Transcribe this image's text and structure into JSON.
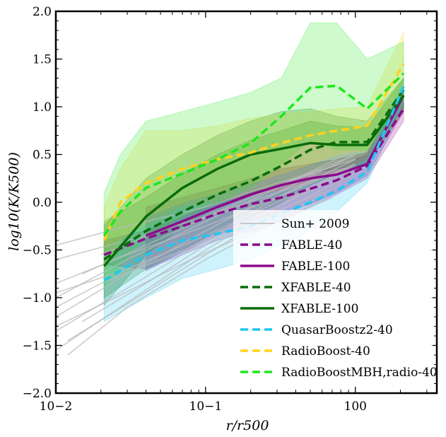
{
  "chart_data": {
    "type": "line",
    "title": "",
    "xlabel": "r/r500",
    "ylabel": "log10(K/K500)",
    "xscale": "log",
    "xlim": [
      0.01,
      3.5
    ],
    "ylim": [
      -2.0,
      2.0
    ],
    "x_ticks": [
      {
        "value": 0.01,
        "label": "10−2"
      },
      {
        "value": 0.1,
        "label": "10−1"
      },
      {
        "value": 1,
        "label": "100"
      }
    ],
    "y_ticks": [
      {
        "value": -2.0,
        "label": "−2.0"
      },
      {
        "value": -1.5,
        "label": "−1.5"
      },
      {
        "value": -1.0,
        "label": "−1.0"
      },
      {
        "value": -0.5,
        "label": "−0.5"
      },
      {
        "value": 0.0,
        "label": "0.0"
      },
      {
        "value": 0.5,
        "label": "0.5"
      },
      {
        "value": 1.0,
        "label": "1.0"
      },
      {
        "value": 1.5,
        "label": "1.5"
      },
      {
        "value": 2.0,
        "label": "2.0"
      }
    ],
    "legend_position": "lower-right",
    "background_profiles": {
      "name": "Sun+ 2009",
      "color": "#bbbbbb",
      "profiles": [
        {
          "x": [
            0.01,
            0.03,
            0.1,
            0.3,
            1.0
          ],
          "y": [
            -1.55,
            -1.05,
            -0.5,
            -0.05,
            0.4
          ]
        },
        {
          "x": [
            0.01,
            0.03,
            0.1,
            0.3,
            1.0
          ],
          "y": [
            -1.35,
            -0.9,
            -0.4,
            0.05,
            0.45
          ]
        },
        {
          "x": [
            0.01,
            0.03,
            0.1,
            0.3,
            1.0
          ],
          "y": [
            -1.2,
            -0.75,
            -0.3,
            0.1,
            0.5
          ]
        },
        {
          "x": [
            0.01,
            0.03,
            0.1,
            0.3,
            1.0
          ],
          "y": [
            -1.0,
            -0.6,
            -0.2,
            0.15,
            0.55
          ]
        },
        {
          "x": [
            0.01,
            0.03,
            0.1,
            0.3,
            1.0
          ],
          "y": [
            -0.85,
            -0.55,
            -0.25,
            0.05,
            0.4
          ]
        },
        {
          "x": [
            0.01,
            0.03,
            0.1,
            0.3,
            0.9
          ],
          "y": [
            -0.6,
            -0.4,
            -0.15,
            0.1,
            0.35
          ]
        },
        {
          "x": [
            0.01,
            0.03,
            0.1,
            0.3,
            0.8
          ],
          "y": [
            -0.45,
            -0.25,
            -0.05,
            0.2,
            0.4
          ]
        },
        {
          "x": [
            0.012,
            0.03,
            0.1,
            0.3,
            0.8
          ],
          "y": [
            -1.6,
            -1.1,
            -0.6,
            -0.2,
            0.2
          ]
        },
        {
          "x": [
            0.012,
            0.035,
            0.1,
            0.3,
            1.0
          ],
          "y": [
            -1.45,
            -1.0,
            -0.55,
            -0.1,
            0.3
          ]
        },
        {
          "x": [
            0.015,
            0.04,
            0.1,
            0.3,
            1.0
          ],
          "y": [
            -1.25,
            -0.85,
            -0.45,
            -0.05,
            0.35
          ]
        },
        {
          "x": [
            0.01,
            0.03,
            0.1,
            0.3,
            0.7
          ],
          "y": [
            -0.95,
            -0.7,
            -0.35,
            0.0,
            0.25
          ]
        },
        {
          "x": [
            0.01,
            0.02,
            0.06,
            0.2,
            0.6
          ],
          "y": [
            -1.1,
            -0.85,
            -0.55,
            -0.2,
            0.1
          ]
        },
        {
          "x": [
            0.015,
            0.04,
            0.12,
            0.4,
            1.0
          ],
          "y": [
            -0.75,
            -0.45,
            -0.1,
            0.25,
            0.5
          ]
        },
        {
          "x": [
            0.02,
            0.05,
            0.15,
            0.4,
            1.0
          ],
          "y": [
            -0.55,
            -0.3,
            0.0,
            0.25,
            0.45
          ]
        },
        {
          "x": [
            0.01,
            0.025,
            0.08,
            0.25,
            0.7
          ],
          "y": [
            -1.3,
            -1.0,
            -0.6,
            -0.25,
            0.05
          ]
        }
      ]
    },
    "series": [
      {
        "name": "FABLE-40",
        "color": "#8b0a8b",
        "dash": "dashed",
        "x": [
          0.021,
          0.04,
          0.07,
          0.12,
          0.2,
          0.32,
          0.5,
          0.75,
          1.2,
          2.1
        ],
        "y": [
          -0.55,
          -0.38,
          -0.25,
          -0.12,
          -0.02,
          0.05,
          0.14,
          0.23,
          0.38,
          0.98
        ],
        "band_low": [
          -0.65,
          -0.7,
          -0.55,
          -0.4,
          -0.3,
          -0.2,
          -0.05,
          0.08,
          0.25,
          0.85
        ],
        "band_high": [
          -0.4,
          -0.3,
          -0.15,
          0.0,
          0.1,
          0.18,
          0.28,
          0.38,
          0.5,
          1.15
        ]
      },
      {
        "name": "FABLE-100",
        "color": "#8b0a8b",
        "dash": "solid",
        "x": [
          0.04,
          0.07,
          0.12,
          0.2,
          0.32,
          0.5,
          0.75,
          1.2,
          2.1
        ],
        "y": [
          -0.35,
          -0.2,
          -0.05,
          0.08,
          0.18,
          0.25,
          0.29,
          0.4,
          1.12
        ],
        "band_low": [
          -0.72,
          -0.52,
          -0.35,
          -0.2,
          -0.1,
          -0.02,
          0.1,
          0.28,
          0.95
        ],
        "band_high": [
          -0.05,
          0.05,
          0.15,
          0.25,
          0.35,
          0.4,
          0.45,
          0.52,
          1.22
        ]
      },
      {
        "name": "XFABLE-40",
        "color": "#0a6b0a",
        "dash": "dashed",
        "x": [
          0.021,
          0.04,
          0.07,
          0.12,
          0.2,
          0.32,
          0.5,
          0.75,
          1.2,
          2.1
        ],
        "y": [
          -0.6,
          -0.3,
          -0.1,
          0.08,
          0.22,
          0.38,
          0.55,
          0.63,
          0.63,
          1.18
        ],
        "band_low": [
          -1.0,
          -0.7,
          -0.5,
          -0.3,
          -0.15,
          0.0,
          0.18,
          0.3,
          0.4,
          1.0
        ],
        "band_high": [
          -0.2,
          0.05,
          0.3,
          0.5,
          0.65,
          0.75,
          0.85,
          0.8,
          0.78,
          1.3
        ]
      },
      {
        "name": "XFABLE-100",
        "color": "#0a6b0a",
        "dash": "solid",
        "x": [
          0.021,
          0.04,
          0.07,
          0.12,
          0.2,
          0.32,
          0.5,
          0.75,
          1.2,
          2.1
        ],
        "y": [
          -0.67,
          -0.15,
          0.15,
          0.35,
          0.5,
          0.56,
          0.62,
          0.6,
          0.6,
          1.12
        ],
        "band_low": [
          -1.08,
          -0.55,
          -0.25,
          -0.05,
          0.1,
          0.2,
          0.3,
          0.35,
          0.4,
          0.95
        ],
        "band_high": [
          -0.25,
          0.25,
          0.5,
          0.7,
          0.85,
          0.95,
          0.98,
          0.9,
          0.85,
          1.3
        ]
      },
      {
        "name": "QuasarBoostz2-40",
        "color": "#1ec8f0",
        "dash": "dashed",
        "x": [
          0.021,
          0.04,
          0.07,
          0.12,
          0.2,
          0.32,
          0.5,
          0.75,
          1.2,
          2.1
        ],
        "y": [
          -0.82,
          -0.55,
          -0.4,
          -0.33,
          -0.25,
          -0.12,
          0.0,
          0.12,
          0.32,
          1.21
        ],
        "band_low": [
          -1.25,
          -1.0,
          -0.8,
          -0.7,
          -0.6,
          -0.45,
          -0.3,
          -0.1,
          0.2,
          1.05
        ],
        "band_high": [
          -0.5,
          -0.25,
          -0.05,
          0.0,
          0.05,
          0.12,
          0.2,
          0.3,
          0.45,
          1.3
        ]
      },
      {
        "name": "RadioBoost-40",
        "color": "#ffd21e",
        "dash": "dashed",
        "x": [
          0.021,
          0.027,
          0.04,
          0.07,
          0.12,
          0.2,
          0.32,
          0.5,
          0.75,
          1.2,
          2.1
        ],
        "y": [
          -0.4,
          0.0,
          0.2,
          0.35,
          0.45,
          0.52,
          0.62,
          0.7,
          0.75,
          0.8,
          1.45
        ],
        "band_low": [
          -0.7,
          -0.4,
          -0.15,
          0.0,
          0.1,
          0.2,
          0.3,
          0.4,
          0.5,
          0.55,
          1.2
        ],
        "band_high": [
          -0.05,
          0.35,
          0.75,
          0.75,
          0.8,
          0.88,
          0.92,
          0.95,
          0.98,
          1.0,
          1.78
        ]
      },
      {
        "name": "RadioBoostMBH,radio-40",
        "color": "#1ee61e",
        "dash": "dashed",
        "x": [
          0.021,
          0.027,
          0.04,
          0.07,
          0.12,
          0.2,
          0.32,
          0.5,
          0.75,
          1.2,
          2.1
        ],
        "y": [
          -0.35,
          -0.1,
          0.15,
          0.3,
          0.45,
          0.62,
          0.9,
          1.2,
          1.22,
          0.98,
          1.35
        ],
        "band_low": [
          -0.9,
          -0.65,
          -0.35,
          -0.15,
          0.0,
          0.15,
          0.4,
          0.65,
          0.55,
          0.55,
          1.05
        ],
        "band_high": [
          0.1,
          0.5,
          0.85,
          0.95,
          1.05,
          1.15,
          1.3,
          1.88,
          1.88,
          1.5,
          1.68
        ]
      }
    ]
  }
}
